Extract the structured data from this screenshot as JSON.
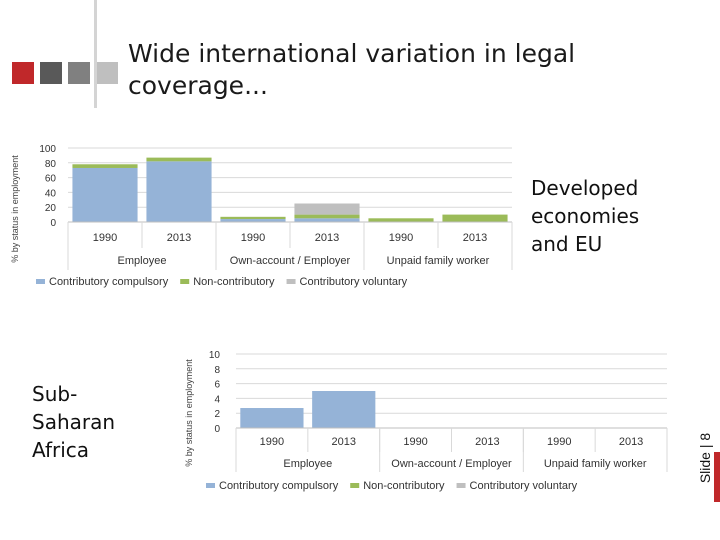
{
  "header": {
    "title": "Wide international variation in legal coverage...",
    "squares": [
      "#c0282a",
      "#595959",
      "#808080",
      "#bfbfbf"
    ]
  },
  "regions": {
    "developed": "Developed economies and EU",
    "africa": "Sub-Saharan Africa"
  },
  "slide_label": "Slide | 8",
  "colors": {
    "contributory_compulsory": "#95b3d7",
    "non_contributory": "#9bbb59",
    "contributory_voluntary": "#bfbfbf",
    "accent": "#c0282a"
  },
  "chart_data": [
    {
      "type": "bar",
      "stacked": true,
      "ylabel": "% by status in employment",
      "ylim": [
        0,
        100
      ],
      "yticks": [
        0,
        20,
        40,
        60,
        80,
        100
      ],
      "categories": [
        "1990",
        "2013",
        "1990",
        "2013",
        "1990",
        "2013"
      ],
      "groups": [
        "Employee",
        "Own-account / Employer",
        "Unpaid family worker"
      ],
      "grid": true,
      "legend_position": "bottom",
      "series": [
        {
          "name": "Contributory compulsory",
          "values": [
            73,
            82,
            4,
            5,
            0,
            0
          ]
        },
        {
          "name": "Non-contributory",
          "values": [
            5,
            5,
            3,
            5,
            5,
            10
          ]
        },
        {
          "name": "Contributory voluntary",
          "values": [
            0,
            0,
            0,
            15,
            0,
            0
          ]
        }
      ]
    },
    {
      "type": "bar",
      "stacked": true,
      "ylabel": "% by status in employment",
      "ylim": [
        0,
        10
      ],
      "yticks": [
        0,
        2,
        4,
        6,
        8,
        10
      ],
      "categories": [
        "1990",
        "2013",
        "1990",
        "2013",
        "1990",
        "2013"
      ],
      "groups": [
        "Employee",
        "Own-account / Employer",
        "Unpaid family worker"
      ],
      "grid": true,
      "legend_position": "bottom",
      "series": [
        {
          "name": "Contributory compulsory",
          "values": [
            2.7,
            5.0,
            0,
            0,
            0,
            0
          ]
        },
        {
          "name": "Non-contributory",
          "values": [
            0,
            0,
            0,
            0,
            0,
            0
          ]
        },
        {
          "name": "Contributory voluntary",
          "values": [
            0,
            0,
            0,
            0,
            0,
            0
          ]
        }
      ]
    }
  ]
}
